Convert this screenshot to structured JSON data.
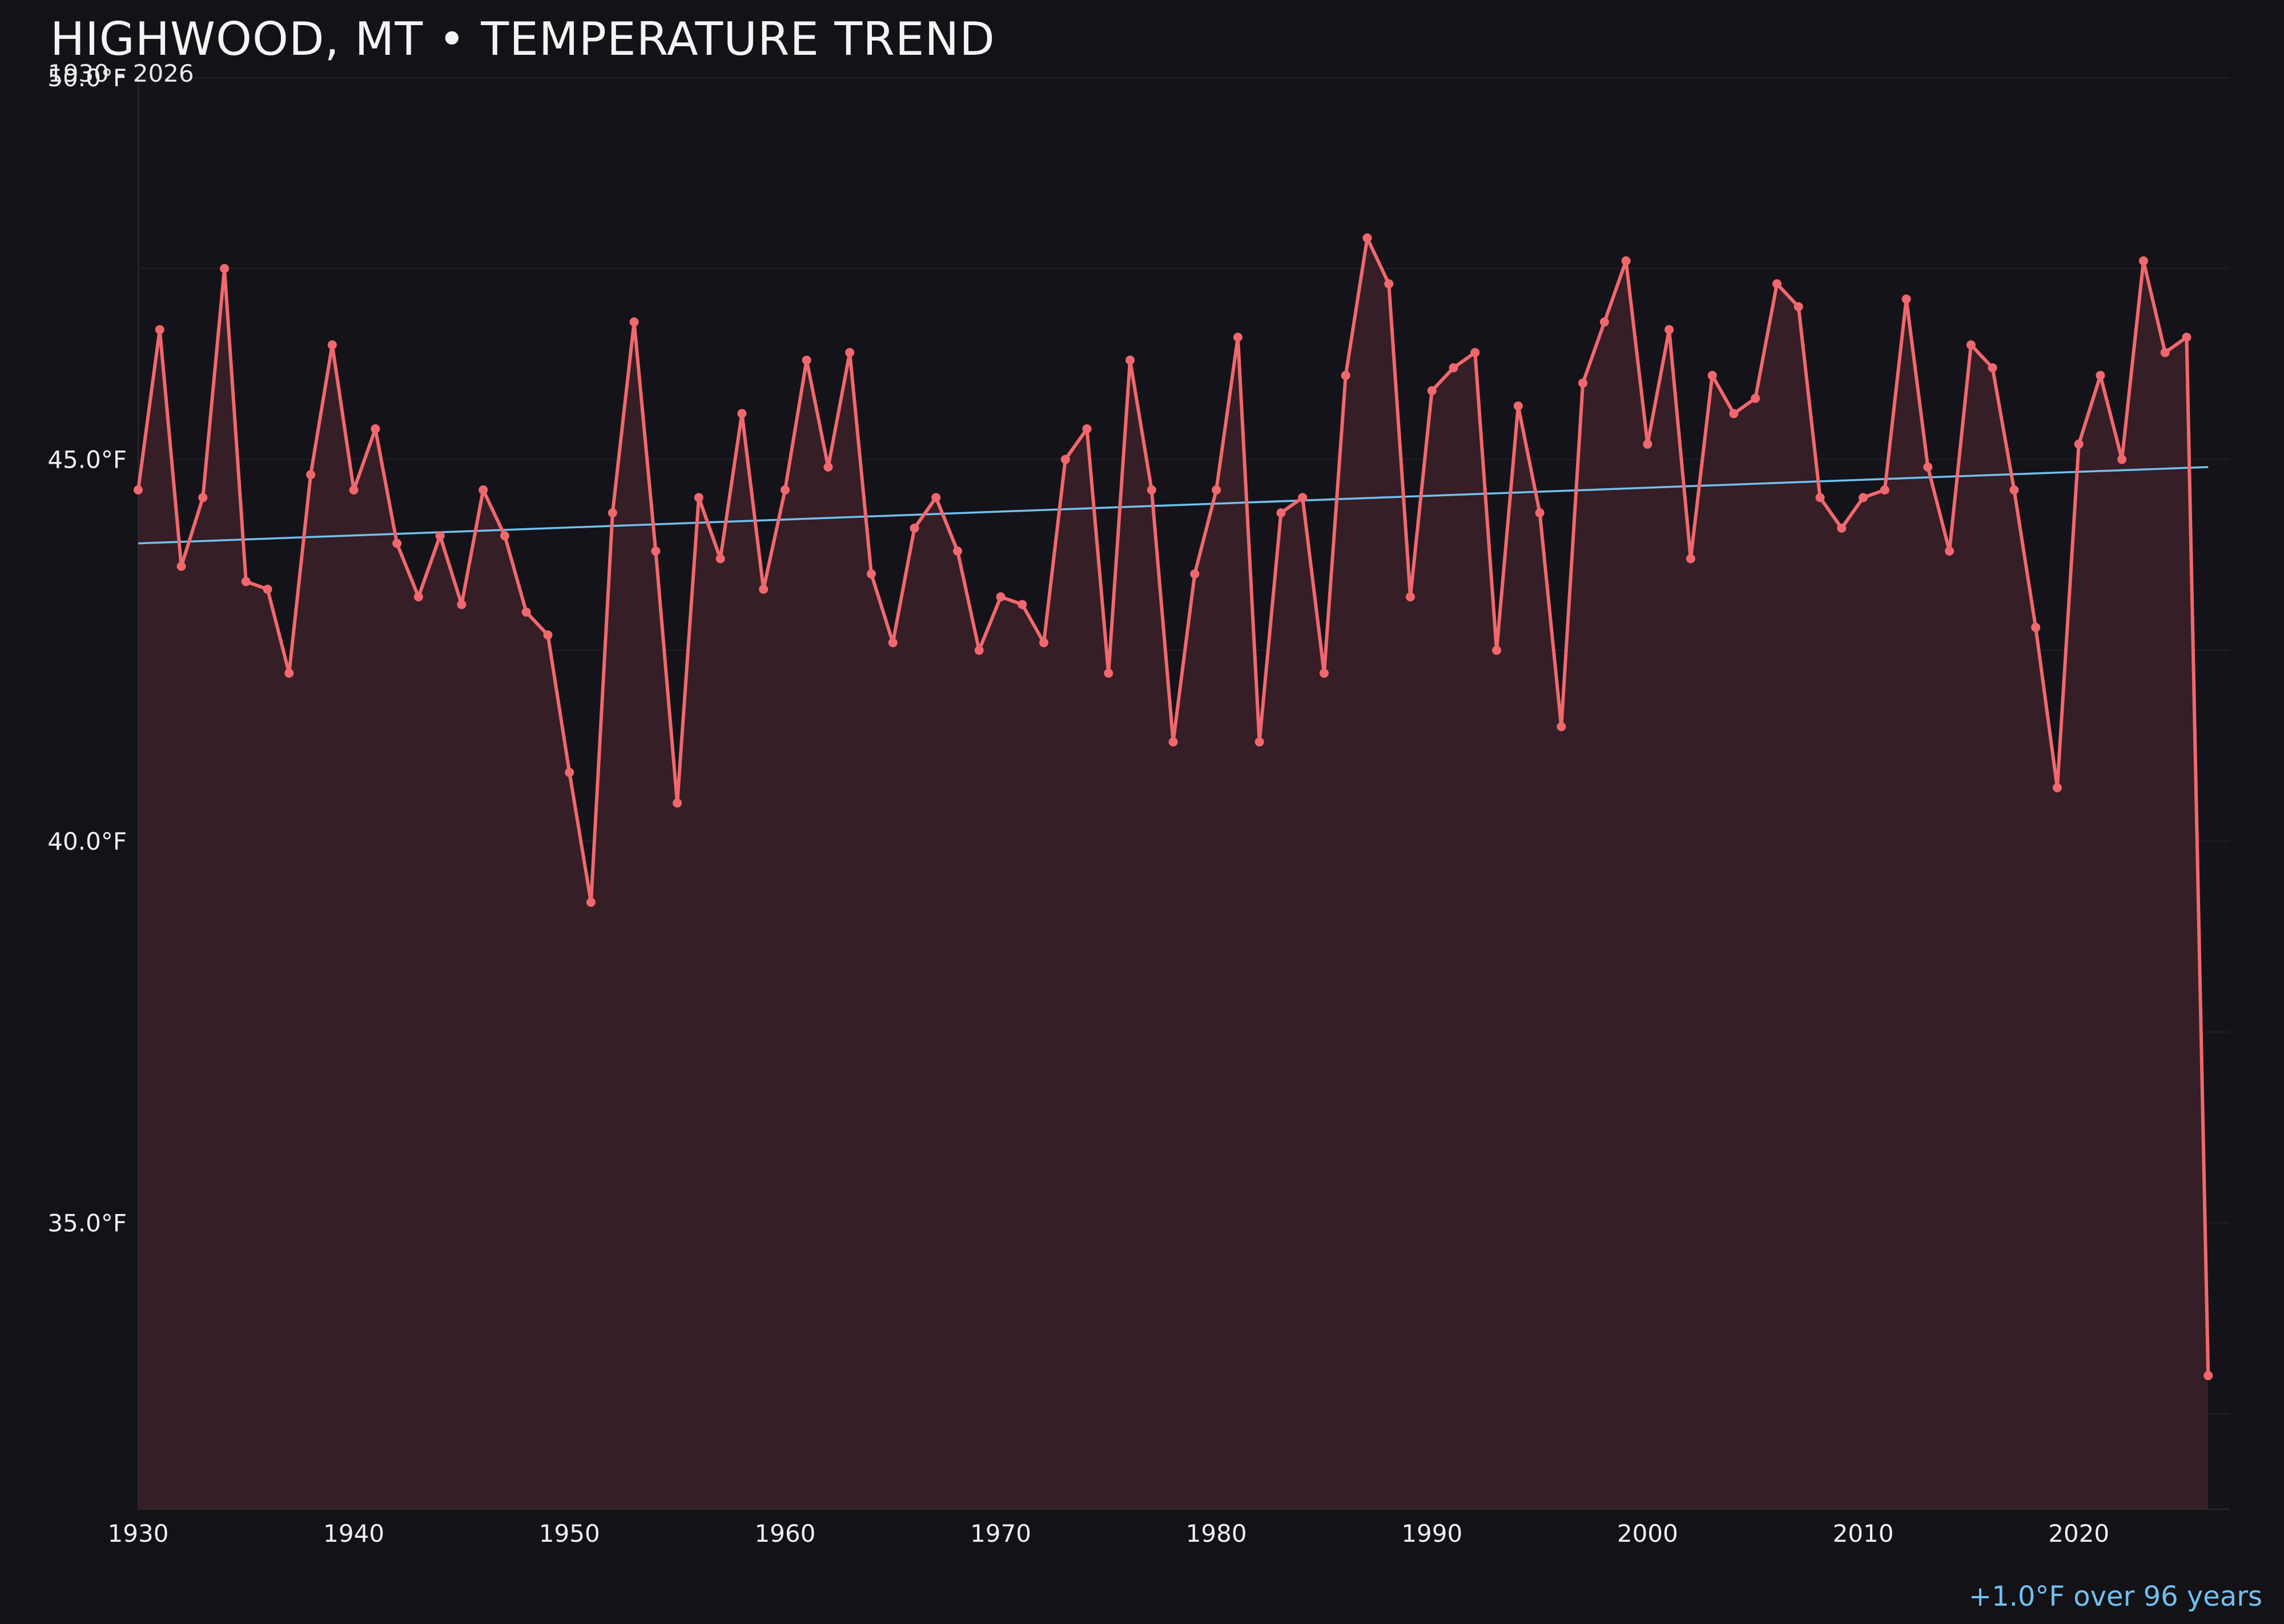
{
  "chart_data": {
    "type": "line",
    "title": "HIGHWOOD, MT • TEMPERATURE TREND",
    "subtitle": "1930 - 2026",
    "x_ticks": [
      "1930",
      "1940",
      "1950",
      "1960",
      "1970",
      "1980",
      "1990",
      "2000",
      "2010",
      "2020"
    ],
    "y_ticks": [
      "35.0°F",
      "40.0°F",
      "45.0°F",
      "50.0°F"
    ],
    "y_tick_values": [
      35,
      40,
      45,
      50
    ],
    "xlim": [
      1930,
      2027
    ],
    "ylim": [
      31.25,
      50
    ],
    "grid": true,
    "annotation": "+1.0°F over 96 years",
    "series": [
      {
        "x": [
          1930,
          1931,
          1932,
          1933,
          1934,
          1935,
          1936,
          1937,
          1938,
          1939,
          1940,
          1941,
          1942,
          1943,
          1944,
          1945,
          1946,
          1947,
          1948,
          1949,
          1950,
          1951,
          1952,
          1953,
          1954,
          1955,
          1956,
          1957,
          1958,
          1959,
          1960,
          1961,
          1962,
          1963,
          1964,
          1965,
          1966,
          1967,
          1968,
          1969,
          1970,
          1971,
          1972,
          1973,
          1974,
          1975,
          1976,
          1977,
          1978,
          1979,
          1980,
          1981,
          1982,
          1983,
          1984,
          1985,
          1986,
          1987,
          1988,
          1989,
          1990,
          1991,
          1992,
          1993,
          1994,
          1995,
          1996,
          1997,
          1998,
          1999,
          2000,
          2001,
          2002,
          2003,
          2004,
          2005,
          2006,
          2007,
          2008,
          2009,
          2010,
          2011,
          2012,
          2013,
          2014,
          2015,
          2016,
          2017,
          2018,
          2019,
          2020,
          2021,
          2022,
          2023,
          2024,
          2025,
          2026
        ],
        "y": [
          44.6,
          46.7,
          43.6,
          44.5,
          47.5,
          43.4,
          43.3,
          42.2,
          44.8,
          46.5,
          44.6,
          45.4,
          43.9,
          43.2,
          44.0,
          43.1,
          44.6,
          44.0,
          43.0,
          42.7,
          40.9,
          39.2,
          44.3,
          46.8,
          43.8,
          40.5,
          44.5,
          43.7,
          45.6,
          43.3,
          44.6,
          46.3,
          44.9,
          46.4,
          43.5,
          42.6,
          44.1,
          44.5,
          43.8,
          42.5,
          43.2,
          43.1,
          42.6,
          45.0,
          45.4,
          42.2,
          46.3,
          44.6,
          41.3,
          43.5,
          44.6,
          46.6,
          41.3,
          44.3,
          44.5,
          42.2,
          46.1,
          47.9,
          47.3,
          43.2,
          45.9,
          46.2,
          46.4,
          42.5,
          45.7,
          44.3,
          41.5,
          46.0,
          46.8,
          47.6,
          45.2,
          46.7,
          43.7,
          46.1,
          45.6,
          45.8,
          47.3,
          47.0,
          44.5,
          44.1,
          44.5,
          44.6,
          47.1,
          44.9,
          43.8,
          46.5,
          46.2,
          44.6,
          42.8,
          40.7,
          45.2,
          46.1,
          45.0,
          47.6,
          46.4,
          46.6,
          33.0
        ],
        "color": "#f0686e"
      }
    ],
    "trend": {
      "x": [
        1930,
        2026
      ],
      "y": [
        43.9,
        44.9
      ],
      "color": "#6fc1f0"
    },
    "colors": {
      "background": "#131217",
      "plot_background": "#141319",
      "fill": "#351e25",
      "grid": "#231f26",
      "annotation": "#6fc1f0"
    }
  }
}
